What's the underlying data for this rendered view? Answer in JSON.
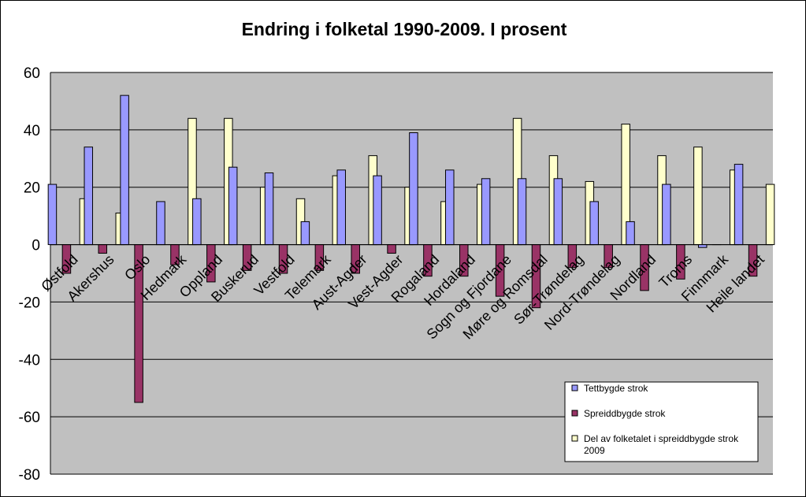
{
  "chart_data": {
    "type": "bar",
    "title": "Endring i folketal 1990-2009. I prosent",
    "xlabel": "",
    "ylabel": "",
    "ylim": [
      -80,
      60
    ],
    "yticks": [
      60,
      40,
      20,
      0,
      -20,
      -40,
      -60,
      -80
    ],
    "grid": true,
    "legend_position": "bottom-right",
    "categories": [
      "Østfold",
      "Akershus",
      "Oslo",
      "Hedmark",
      "Oppland",
      "Buskerud",
      "Vestfold",
      "Telemark",
      "Aust-Agder",
      "Vest-Agder",
      "Rogaland",
      "Hordaland",
      "Sogn og Fjordane",
      "Møre og Romsdal",
      "Sør-Trøndelag",
      "Nord-Trøndelag",
      "Nordland",
      "Troms",
      "Finnmark",
      "Heile landet"
    ],
    "series": [
      {
        "name": "Tettbygde strok",
        "color": "#9999ff",
        "values": [
          21,
          34,
          52,
          15,
          16,
          27,
          25,
          8,
          26,
          24,
          39,
          26,
          23,
          23,
          23,
          15,
          8,
          21,
          -1,
          28
        ]
      },
      {
        "name": "Spreiddbygde strok",
        "color": "#993366",
        "values": [
          -10,
          -3,
          -55,
          -7,
          -13,
          -9,
          -10,
          -9,
          -10,
          -3,
          -11,
          -11,
          -18,
          -22,
          -8,
          -8,
          -16,
          -12,
          0,
          -11
        ]
      },
      {
        "name": "Del av folketalet i spreiddbygde strok 2009",
        "color": "#ffffcc",
        "values": [
          16,
          11,
          null,
          44,
          44,
          20,
          16,
          24,
          31,
          20,
          15,
          21,
          44,
          31,
          22,
          42,
          31,
          34,
          26,
          21
        ]
      }
    ]
  },
  "colors": {
    "plot_background": "#c0c0c0",
    "gridline": "#000000"
  }
}
